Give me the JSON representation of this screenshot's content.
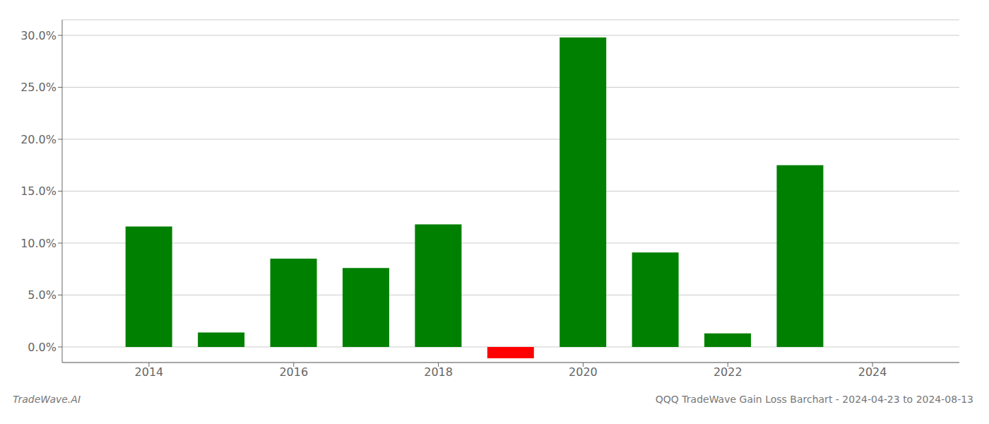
{
  "chart_data": {
    "type": "bar",
    "title": "QQQ TradeWave Gain Loss Barchart - 2024-04-23 to 2024-08-13",
    "annotations": [
      "TradeWave.AI"
    ],
    "x": [
      2014,
      2015,
      2016,
      2017,
      2018,
      2019,
      2020,
      2021,
      2022,
      2023,
      2024
    ],
    "values": [
      0.116,
      0.014,
      0.085,
      0.076,
      0.118,
      -0.011,
      0.298,
      0.091,
      0.013,
      0.175,
      0.0
    ],
    "colors": [
      "#008000",
      "#008000",
      "#008000",
      "#008000",
      "#008000",
      "#ff0000",
      "#008000",
      "#008000",
      "#008000",
      "#008000",
      "#008000"
    ],
    "xlim": [
      2012.8,
      2025.2
    ],
    "xticks": [
      2014,
      2016,
      2018,
      2020,
      2022,
      2024
    ],
    "ylim": [
      -0.015,
      0.315
    ],
    "yticks": [
      {
        "value": 0.0,
        "label": "0.0%"
      },
      {
        "value": 0.05,
        "label": "5.0%"
      },
      {
        "value": 0.1,
        "label": "10.0%"
      },
      {
        "value": 0.15,
        "label": "15.0%"
      },
      {
        "value": 0.2,
        "label": "20.0%"
      },
      {
        "value": 0.25,
        "label": "25.0%"
      },
      {
        "value": 0.3,
        "label": "30.0%"
      }
    ],
    "grid": "y"
  }
}
